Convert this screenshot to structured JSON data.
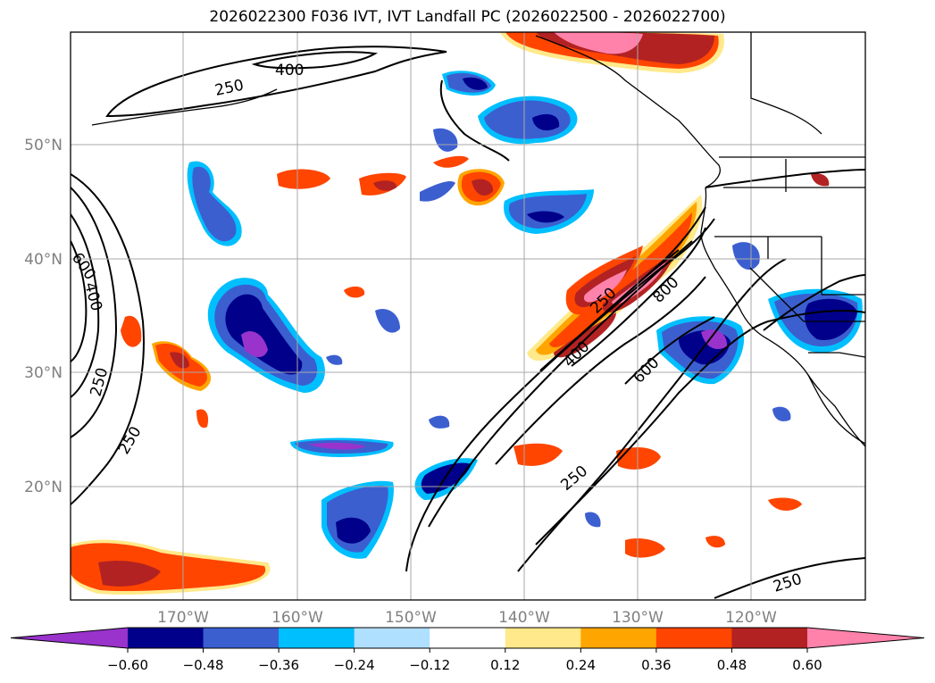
{
  "title": "2026022300 F036 IVT, IVT Landfall PC (2026022500 - 2026022700)",
  "map": {
    "lat_labels": [
      "50°N",
      "40°N",
      "30°N",
      "20°N"
    ],
    "lon_labels": [
      "170°W",
      "160°W",
      "150°W",
      "140°W",
      "130°W",
      "120°W"
    ],
    "contour_labels": [
      "400",
      "250",
      "600",
      "400",
      "250",
      "250",
      "250",
      "400",
      "800",
      "600",
      "250",
      "250"
    ],
    "colors": {
      "coast": "#000000",
      "grid": "#a9a9a9",
      "contour": "#000000"
    }
  },
  "colorbar": {
    "ticks": [
      "−0.60",
      "−0.48",
      "−0.36",
      "−0.24",
      "−0.12",
      "0.12",
      "0.24",
      "0.36",
      "0.48",
      "0.60"
    ],
    "colors": [
      "#9933cc",
      "#00008b",
      "#3c5fd0",
      "#00bfff",
      "#b0e0ff",
      "#ffffff",
      "#ffe98a",
      "#ffa500",
      "#ff4500",
      "#b22222",
      "#ff82ab"
    ]
  },
  "blobs_legend": {
    "neg_outer": "#00bfff",
    "neg_mid": "#3c5fd0",
    "neg_inner": "#00008b",
    "neg_core": "#9933cc",
    "pos_outer": "#ffe98a",
    "pos_mid": "#ffa500",
    "pos_inner": "#ff4500",
    "pos_core": "#b22222",
    "pos_peak": "#ff82ab"
  }
}
